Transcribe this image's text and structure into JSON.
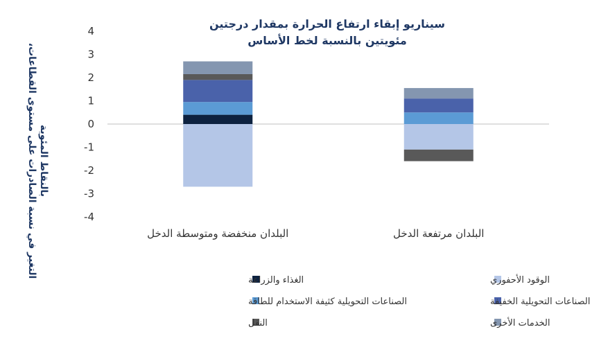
{
  "chart_data": {
    "type": "bar",
    "stacked": true,
    "title_lines": [
      "سيناريو إبقاء ارتفاع الحرارة بمقدار درجتين",
      "مئويتين بالنسبة لخط الأساس"
    ],
    "ylabel_lines": [
      "التغير في نسبة الصادرات على مستوى القطاعات،",
      "بالنقاط المئوية"
    ],
    "xlabel": "",
    "ylim": [
      -4,
      4
    ],
    "yticks": [
      4,
      3,
      2,
      1,
      0,
      -1,
      -2,
      -3,
      -4
    ],
    "ytick_labels": [
      "4",
      "3",
      "2",
      "1",
      "0",
      "-1",
      "-2",
      "-3",
      "-4"
    ],
    "grid": false,
    "legend_position": "bottom",
    "categories": [
      "البلدان منخفضة ومتوسطة الدخل",
      "البلدان مرتفعة الدخل"
    ],
    "series": [
      {
        "name": "الوقود الأحفوري",
        "color": "#b4c6e7",
        "values": [
          -2.7,
          -1.1
        ]
      },
      {
        "name": "الغذاء والزراعة",
        "color": "#0d2240",
        "values": [
          0.4,
          0.0
        ]
      },
      {
        "name": "الصناعات التحويلية كثيفة الاستخدام للطاقة",
        "color": "#5b9bd5",
        "values": [
          0.55,
          0.5
        ]
      },
      {
        "name": "الصناعات التحويلية الخفيفة",
        "color": "#4a62aa",
        "values": [
          0.95,
          0.6
        ]
      },
      {
        "name": "النقل",
        "color": "#595959",
        "values": [
          0.25,
          -0.5
        ]
      },
      {
        "name": "الخدمات الأخرى",
        "color": "#8496b0",
        "values": [
          0.55,
          0.45
        ]
      }
    ]
  }
}
